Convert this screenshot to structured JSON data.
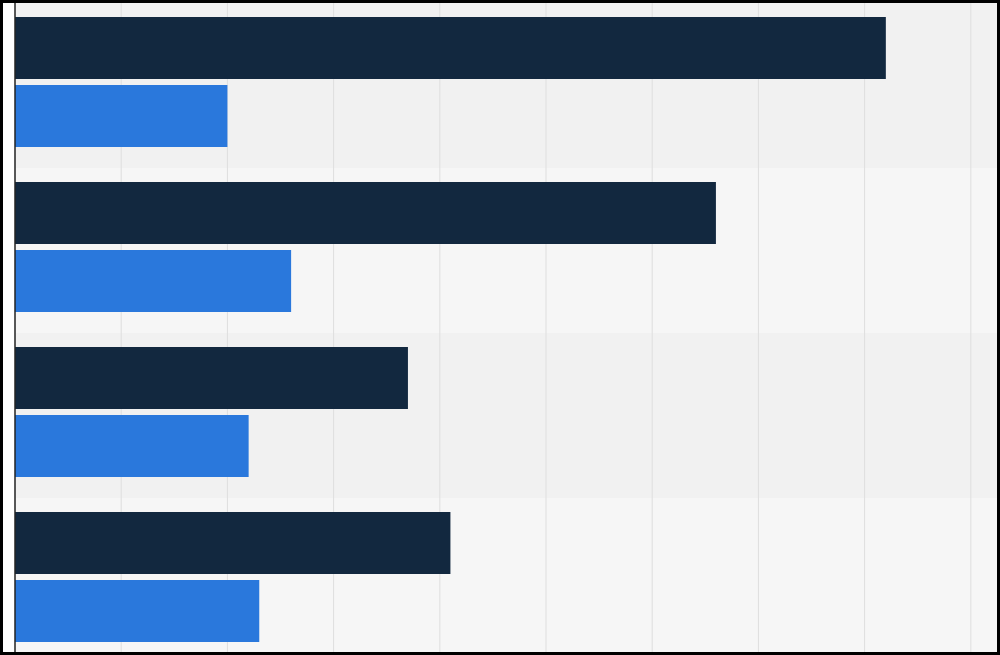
{
  "chart_data": {
    "type": "bar",
    "orientation": "horizontal",
    "categories": [
      "",
      "",
      "",
      ""
    ],
    "series": [
      {
        "color": "#12283f",
        "values": [
          8.2,
          6.6,
          3.7,
          4.1
        ]
      },
      {
        "color": "#2a78dc",
        "values": [
          2.0,
          2.6,
          2.2,
          2.3
        ]
      }
    ],
    "xlim": [
      0,
      9
    ],
    "grid": true,
    "title": "",
    "xlabel": "",
    "ylabel": ""
  },
  "colors": {
    "band_light": "#f6f6f6",
    "band_dark": "#f1f1f1",
    "gridline": "#dedede",
    "axis": "#222222"
  }
}
